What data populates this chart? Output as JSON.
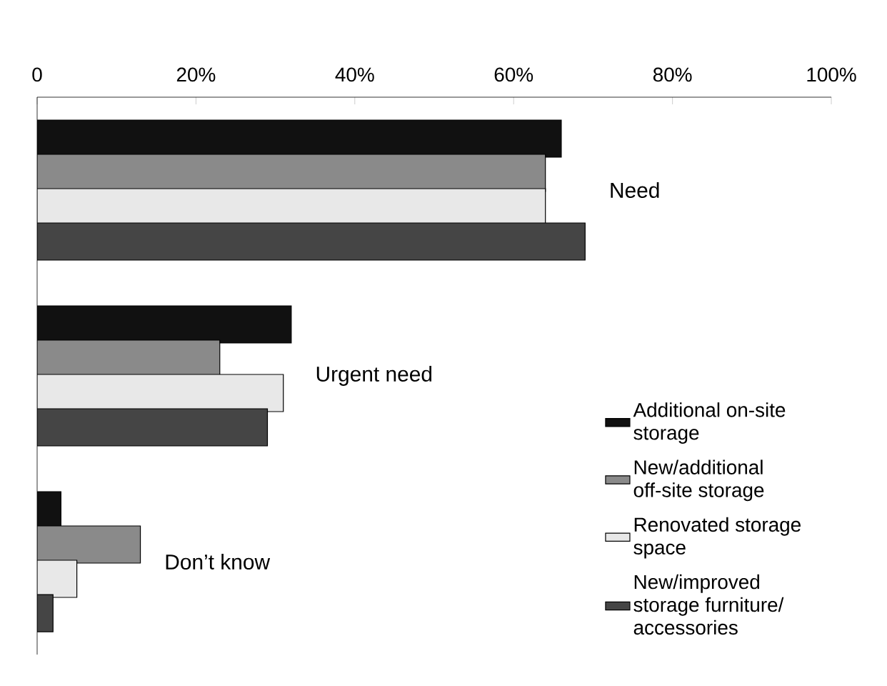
{
  "chart_data": {
    "type": "bar",
    "orientation": "horizontal",
    "categories": [
      "Need",
      "Urgent need",
      "Don’t know"
    ],
    "series": [
      {
        "name": "Additional on-site storage",
        "color": "#111111",
        "values": [
          66,
          32,
          3
        ]
      },
      {
        "name": "New/additional off-site storage",
        "color": "#8a8a8a",
        "values": [
          64,
          23,
          13
        ]
      },
      {
        "name": "Renovated storage space",
        "color": "#e8e8e8",
        "values": [
          64,
          31,
          5
        ]
      },
      {
        "name": "New/improved storage furniture/ accessories",
        "color": "#454545",
        "values": [
          69,
          29,
          2
        ]
      }
    ],
    "xlim": [
      0,
      100
    ],
    "xticks": [
      0,
      {
        "value": 20,
        "label": "20%"
      },
      {
        "value": 40,
        "label": "40%"
      },
      {
        "value": 60,
        "label": "60%"
      },
      {
        "value": 80,
        "label": "80%"
      },
      {
        "value": 100,
        "label": "100%"
      }
    ],
    "legend": "bottom right"
  }
}
